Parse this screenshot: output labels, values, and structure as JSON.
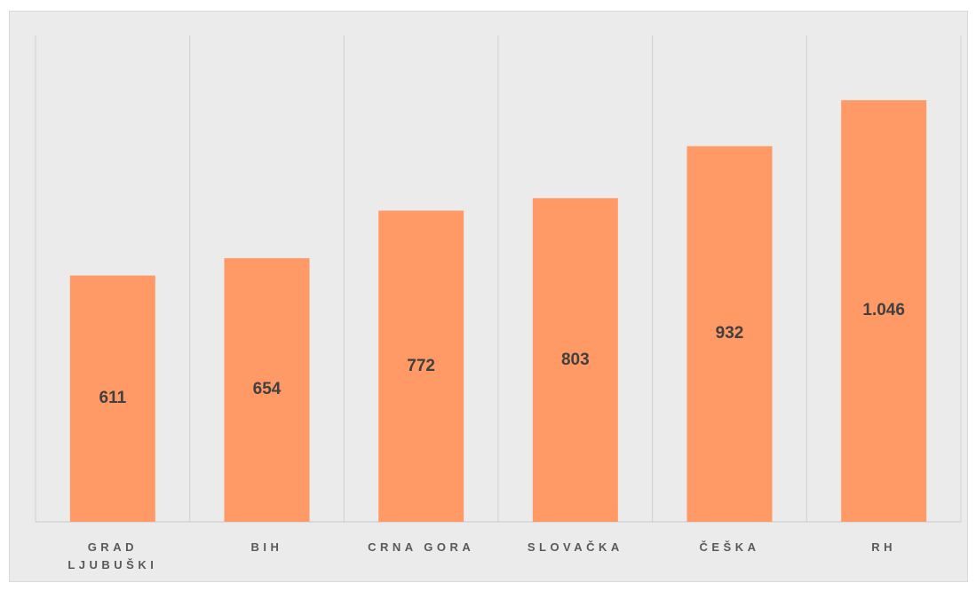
{
  "chart_data": {
    "type": "bar",
    "categories": [
      "GRAD LJUBUŠKI",
      "BIH",
      "CRNA GORA",
      "SLOVAČKA",
      "ČEŠKA",
      "RH"
    ],
    "values": [
      611,
      654,
      772,
      803,
      932,
      1046
    ],
    "value_labels": [
      "611",
      "654",
      "772",
      "803",
      "932",
      "1.046"
    ],
    "color": "#ff9a66",
    "ylim": [
      0,
      1200
    ]
  }
}
